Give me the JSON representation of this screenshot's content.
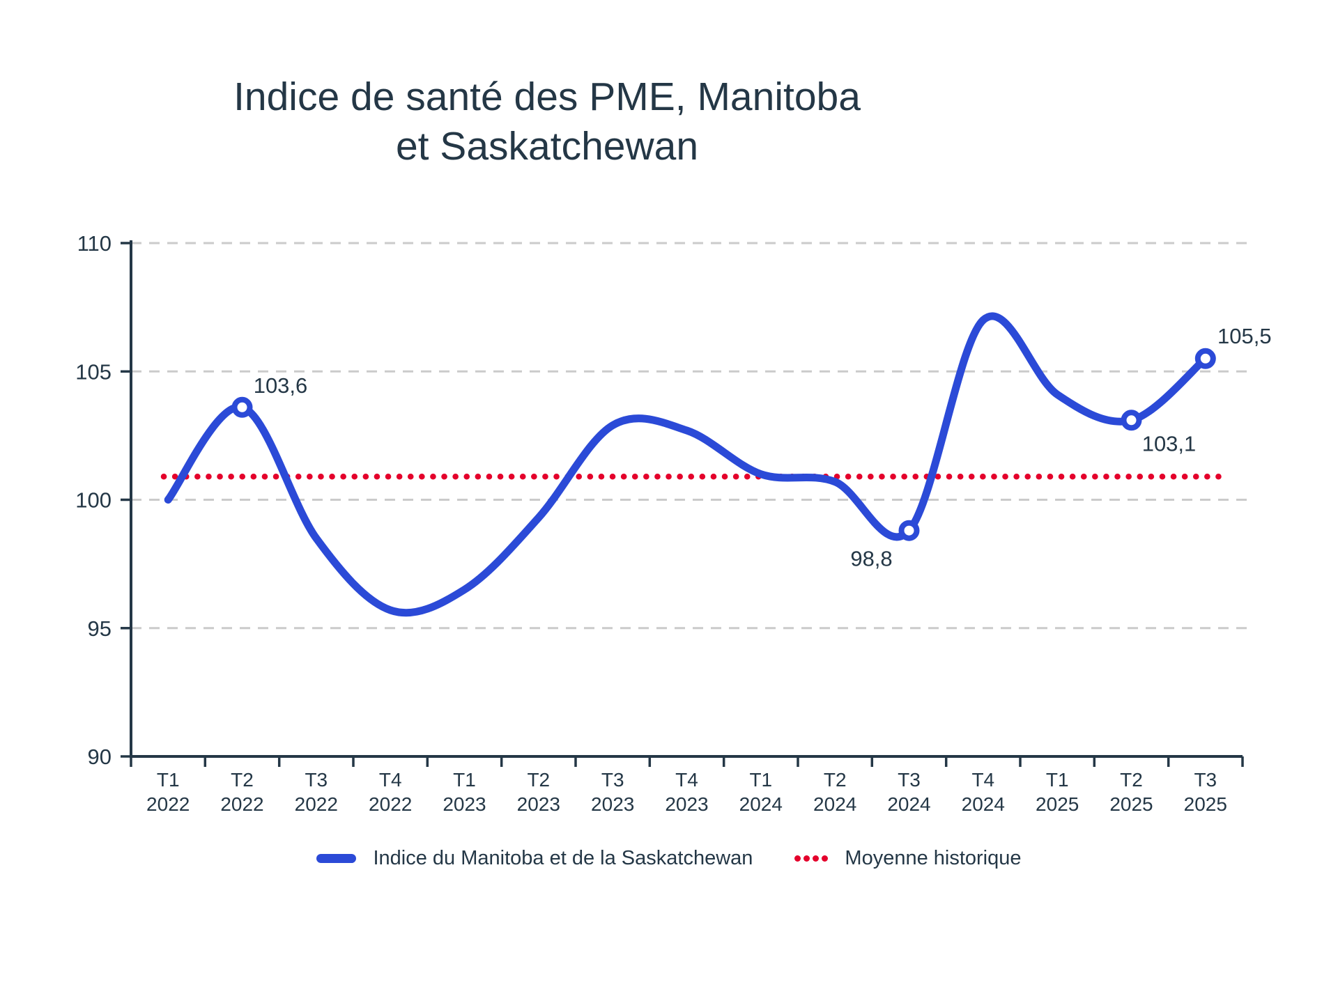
{
  "title": {
    "line1": "Indice de santé des PME, Manitoba",
    "line2": "et Saskatchewan"
  },
  "colors": {
    "blue": "#2b4ad7",
    "red": "#e4002b",
    "text": "#243746",
    "axis": "#243746",
    "gridline": "#cbcbcb"
  },
  "legend": [
    {
      "swatch": "line",
      "color": "#2b4ad7",
      "label": "Indice du Manitoba et de la Saskatchewan"
    },
    {
      "swatch": "dots",
      "color": "#e4002b",
      "label": "Moyenne historique"
    }
  ],
  "chart_data": {
    "type": "line",
    "title": "Indice de santé des PME, Manitoba et Saskatchewan",
    "xlabel": "",
    "ylabel": "",
    "ylim": [
      90,
      110
    ],
    "yticks": [
      90,
      95,
      100,
      105,
      110
    ],
    "grid": "horizontal-dashed",
    "legend_position": "bottom",
    "categories": [
      {
        "q": "T1",
        "year": "2022"
      },
      {
        "q": "T2",
        "year": "2022"
      },
      {
        "q": "T3",
        "year": "2022"
      },
      {
        "q": "T4",
        "year": "2022"
      },
      {
        "q": "T1",
        "year": "2023"
      },
      {
        "q": "T2",
        "year": "2023"
      },
      {
        "q": "T3",
        "year": "2023"
      },
      {
        "q": "T4",
        "year": "2023"
      },
      {
        "q": "T1",
        "year": "2024"
      },
      {
        "q": "T2",
        "year": "2024"
      },
      {
        "q": "T3",
        "year": "2024"
      },
      {
        "q": "T4",
        "year": "2024"
      },
      {
        "q": "T1",
        "year": "2025"
      },
      {
        "q": "T2",
        "year": "2025"
      },
      {
        "q": "T3",
        "year": "2025"
      }
    ],
    "series": [
      {
        "name": "Indice du Manitoba et de la Saskatchewan",
        "style": "smooth-line",
        "values": [
          100.0,
          103.6,
          98.5,
          95.7,
          96.5,
          99.3,
          102.9,
          102.7,
          101.0,
          100.7,
          98.8,
          107.0,
          104.1,
          103.1,
          105.5
        ],
        "labeled_points": [
          {
            "index": 1,
            "label": "103,6",
            "dx": 55,
            "dy": -21
          },
          {
            "index": 10,
            "label": "98,8",
            "dx": -54,
            "dy": 51
          },
          {
            "index": 13,
            "label": "103,1",
            "dx": 54,
            "dy": 44
          },
          {
            "index": 14,
            "label": "105,5",
            "dx": 56,
            "dy": -22
          }
        ]
      },
      {
        "name": "Moyenne historique",
        "style": "dotted-constant",
        "constant_value": 100.9
      }
    ]
  }
}
